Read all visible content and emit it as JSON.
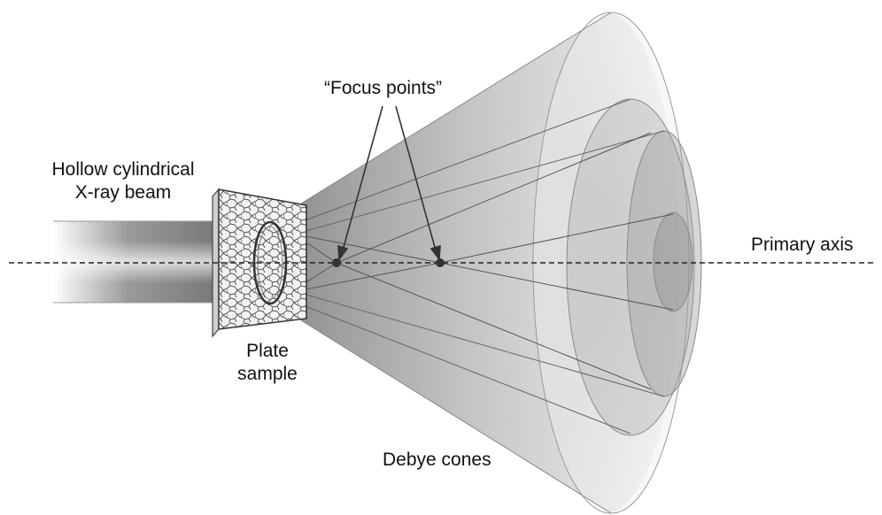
{
  "labels": {
    "beam_line1": "Hollow cylindrical",
    "beam_line2": "X-ray beam",
    "focus_points": "“Focus points”",
    "primary_axis": "Primary axis",
    "plate_line1": "Plate",
    "plate_line2": "sample",
    "debye_cones": "Debye cones"
  },
  "colors": {
    "cone_gray": "#8a8a8a",
    "line": "#555555",
    "text": "#111111"
  }
}
